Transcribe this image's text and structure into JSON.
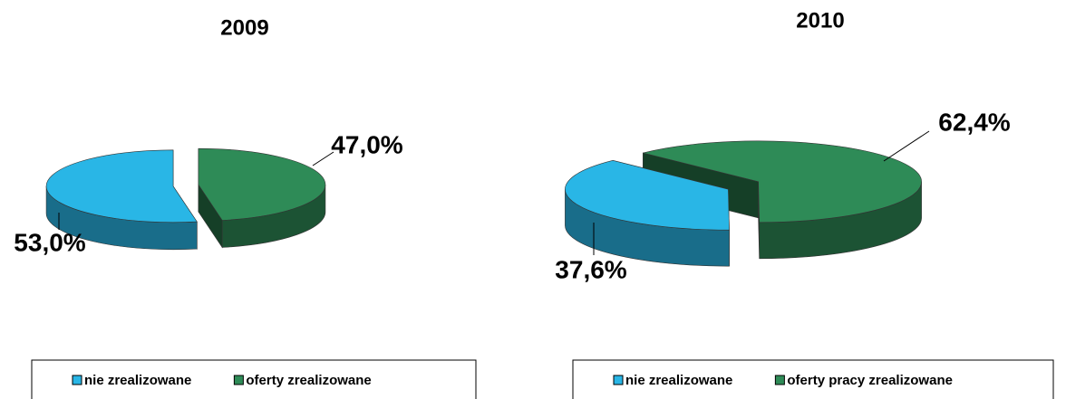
{
  "chart_data": [
    {
      "type": "pie",
      "title": "2009",
      "categories": [
        "nie zrealizowane",
        "oferty zrealizowane"
      ],
      "values": [
        53.0,
        47.0
      ],
      "value_labels": [
        "53,0%",
        "47,0%"
      ],
      "colors": [
        "#29b6e6",
        "#2e8b57"
      ]
    },
    {
      "type": "pie",
      "title": "2010",
      "categories": [
        "nie zrealizowane",
        "oferty pracy zrealizowane"
      ],
      "values": [
        37.6,
        62.4
      ],
      "value_labels": [
        "37,6%",
        "62,4%"
      ],
      "colors": [
        "#29b6e6",
        "#2e8b57"
      ]
    }
  ]
}
